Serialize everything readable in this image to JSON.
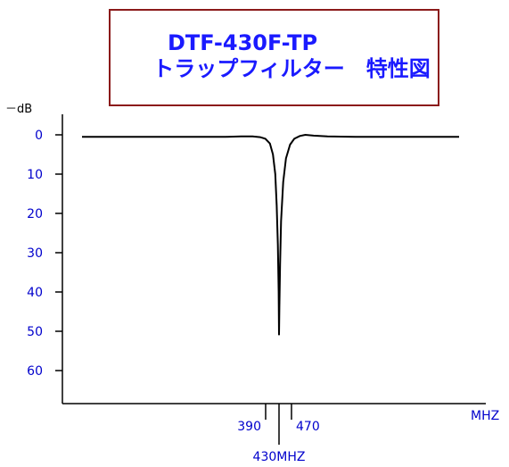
{
  "chart_data": {
    "type": "line",
    "title": "DTF-430F-TP",
    "subtitle": "トラップフィルター　特性図",
    "ylabel": "－dB",
    "xlabel": "MHZ",
    "center_label": "430MHZ",
    "y_ticks": [
      "0",
      "10",
      "20",
      "30",
      "40",
      "50",
      "60"
    ],
    "y_tick_values": [
      0,
      10,
      20,
      30,
      40,
      50,
      60
    ],
    "ylim": [
      0,
      70
    ],
    "y_inverted": true,
    "x_ticks": [
      {
        "label": "390",
        "value": 390
      },
      {
        "label": "470",
        "value": 470
      }
    ],
    "x_center": 430,
    "xlim": [
      150,
      710
    ],
    "grid": false,
    "colors": {
      "title": "#1a1aff",
      "title_border": "#8b1a1a",
      "ticks": "#0000cc",
      "line": "#000000"
    },
    "series": [
      {
        "x": [
          170,
          250,
          320,
          360,
          380,
          395,
          405,
          412,
          418,
          422,
          425,
          427,
          428.5,
          429.5,
          430,
          430.5,
          431.5,
          433,
          436,
          440,
          446,
          452,
          460,
          468,
          480,
          500,
          540,
          600,
          690
        ],
        "y": [
          0.5,
          0.5,
          0.5,
          0.5,
          0.4,
          0.4,
          0.6,
          1.0,
          2.2,
          5.0,
          10.0,
          18.0,
          28.0,
          40.0,
          51.0,
          44.0,
          33.0,
          22.0,
          12.0,
          6.0,
          2.5,
          1.0,
          0.3,
          0.0,
          0.2,
          0.4,
          0.5,
          0.5,
          0.5
        ]
      }
    ]
  }
}
